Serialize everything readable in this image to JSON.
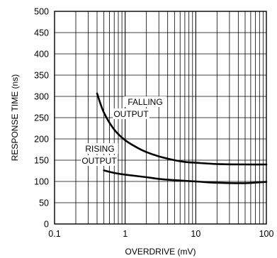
{
  "chart_data": {
    "type": "line",
    "xlabel": "OVERDRIVE (mV)",
    "ylabel": "RESPONSE TIME (ns)",
    "x_scale": "log",
    "xlim": [
      0.1,
      100
    ],
    "ylim": [
      0,
      500
    ],
    "x_ticks": [
      0.1,
      1,
      10,
      100
    ],
    "x_tick_labels": [
      "0.1",
      "1",
      "10",
      "100"
    ],
    "y_ticks": [
      0,
      50,
      100,
      150,
      200,
      250,
      300,
      350,
      400,
      450,
      500
    ],
    "y_tick_labels": [
      "0",
      "50",
      "100",
      "150",
      "200",
      "250",
      "300",
      "350",
      "400",
      "450",
      "500"
    ],
    "grid": true,
    "line_color": "#000000",
    "series": [
      {
        "name": "FALLING OUTPUT",
        "x": [
          0.4,
          0.5,
          0.7,
          1,
          1.5,
          2,
          3,
          5,
          7,
          10,
          20,
          50,
          100
        ],
        "y": [
          307,
          262,
          222,
          197,
          179,
          169,
          159,
          150,
          146,
          144,
          141,
          140,
          140
        ]
      },
      {
        "name": "RISING OUTPUT",
        "x": [
          0.5,
          0.7,
          1,
          2,
          3,
          5,
          10,
          20,
          50,
          100
        ],
        "y": [
          126,
          120,
          116,
          110,
          106,
          103,
          100,
          97,
          96,
          99
        ]
      }
    ],
    "annotations": [
      {
        "text": "FALLING",
        "series": "FALLING OUTPUT"
      },
      {
        "text": "OUTPUT",
        "series": "FALLING OUTPUT"
      },
      {
        "text": "RISING",
        "series": "RISING OUTPUT"
      },
      {
        "text": "OUTPUT",
        "series": "RISING OUTPUT"
      }
    ]
  }
}
